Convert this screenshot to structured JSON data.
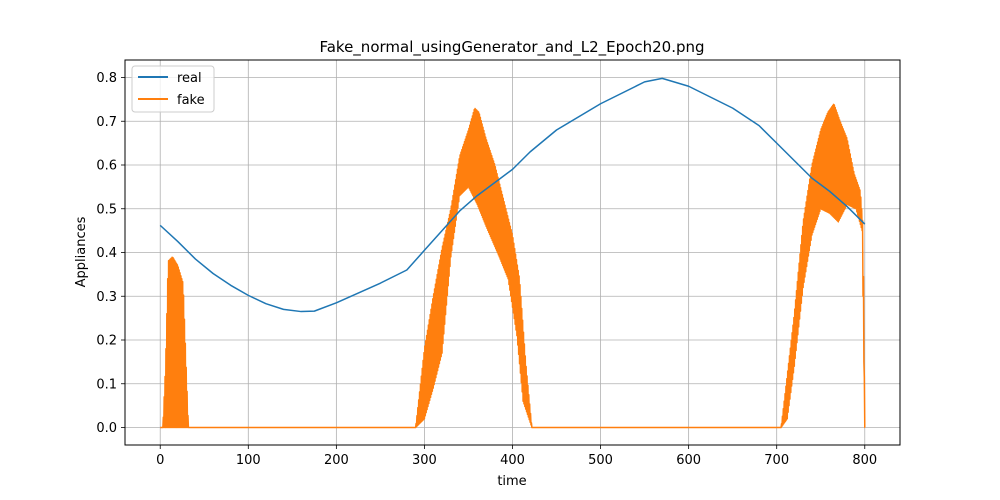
{
  "chart_data": {
    "type": "line",
    "title": "Fake_normal_usingGenerator_and_L2_Epoch20.png",
    "xlabel": "time",
    "ylabel": "Appliances",
    "xlim": [
      -40,
      840
    ],
    "ylim": [
      -0.04,
      0.84
    ],
    "xticks": [
      0,
      100,
      200,
      300,
      400,
      500,
      600,
      700,
      800
    ],
    "yticks": [
      0.0,
      0.1,
      0.2,
      0.3,
      0.4,
      0.5,
      0.6,
      0.7,
      0.8
    ],
    "grid": true,
    "legend_position": "top-left",
    "series": [
      {
        "name": "real",
        "color": "#1f77b4",
        "points": [
          [
            0,
            0.462
          ],
          [
            20,
            0.425
          ],
          [
            40,
            0.385
          ],
          [
            60,
            0.352
          ],
          [
            80,
            0.325
          ],
          [
            100,
            0.302
          ],
          [
            120,
            0.283
          ],
          [
            140,
            0.27
          ],
          [
            160,
            0.265
          ],
          [
            175,
            0.266
          ],
          [
            200,
            0.285
          ],
          [
            250,
            0.33
          ],
          [
            280,
            0.36
          ],
          [
            300,
            0.405
          ],
          [
            320,
            0.45
          ],
          [
            340,
            0.495
          ],
          [
            360,
            0.53
          ],
          [
            380,
            0.56
          ],
          [
            400,
            0.59
          ],
          [
            420,
            0.63
          ],
          [
            450,
            0.68
          ],
          [
            500,
            0.74
          ],
          [
            550,
            0.79
          ],
          [
            570,
            0.798
          ],
          [
            600,
            0.78
          ],
          [
            650,
            0.73
          ],
          [
            680,
            0.69
          ],
          [
            700,
            0.65
          ],
          [
            720,
            0.61
          ],
          [
            740,
            0.57
          ],
          [
            760,
            0.54
          ],
          [
            780,
            0.505
          ],
          [
            800,
            0.465
          ]
        ]
      },
      {
        "name": "fake",
        "color": "#ff7f0e",
        "segments": [
          {
            "start": 3,
            "end": 6,
            "low": [
              [
                3,
                0.0
              ],
              [
                6,
                0.0
              ]
            ],
            "high": [
              [
                3,
                0.0
              ],
              [
                6,
                0.14
              ]
            ]
          },
          {
            "start": 6,
            "end": 32,
            "low": [
              [
                6,
                0.0
              ],
              [
                32,
                0.0
              ]
            ],
            "high": [
              [
                6,
                0.14
              ],
              [
                9,
                0.38
              ],
              [
                14,
                0.39
              ],
              [
                20,
                0.37
              ],
              [
                26,
                0.33
              ],
              [
                32,
                0.0
              ]
            ]
          },
          {
            "start": 290,
            "end": 422,
            "low": [
              [
                290,
                0.0
              ],
              [
                300,
                0.02
              ],
              [
                310,
                0.09
              ],
              [
                320,
                0.17
              ],
              [
                330,
                0.39
              ],
              [
                340,
                0.53
              ],
              [
                350,
                0.55
              ],
              [
                360,
                0.51
              ],
              [
                370,
                0.46
              ],
              [
                385,
                0.39
              ],
              [
                395,
                0.34
              ],
              [
                405,
                0.21
              ],
              [
                412,
                0.06
              ],
              [
                422,
                0.0
              ]
            ],
            "high": [
              [
                290,
                0.0
              ],
              [
                300,
                0.18
              ],
              [
                310,
                0.3
              ],
              [
                320,
                0.41
              ],
              [
                330,
                0.5
              ],
              [
                340,
                0.62
              ],
              [
                350,
                0.68
              ],
              [
                357,
                0.73
              ],
              [
                362,
                0.72
              ],
              [
                370,
                0.66
              ],
              [
                380,
                0.6
              ],
              [
                390,
                0.52
              ],
              [
                400,
                0.44
              ],
              [
                408,
                0.34
              ],
              [
                415,
                0.15
              ],
              [
                422,
                0.0
              ]
            ]
          },
          {
            "start": 705,
            "end": 800,
            "low": [
              [
                705,
                0.0
              ],
              [
                712,
                0.02
              ],
              [
                720,
                0.14
              ],
              [
                730,
                0.32
              ],
              [
                740,
                0.44
              ],
              [
                750,
                0.5
              ],
              [
                760,
                0.49
              ],
              [
                770,
                0.47
              ],
              [
                780,
                0.51
              ],
              [
                790,
                0.5
              ],
              [
                797,
                0.45
              ],
              [
                800,
                0.0
              ]
            ],
            "high": [
              [
                705,
                0.0
              ],
              [
                712,
                0.12
              ],
              [
                720,
                0.26
              ],
              [
                730,
                0.47
              ],
              [
                740,
                0.6
              ],
              [
                750,
                0.68
              ],
              [
                758,
                0.72
              ],
              [
                765,
                0.74
              ],
              [
                772,
                0.7
              ],
              [
                780,
                0.66
              ],
              [
                788,
                0.58
              ],
              [
                795,
                0.54
              ],
              [
                798,
                0.46
              ],
              [
                800,
                0.0
              ]
            ]
          }
        ]
      }
    ]
  }
}
